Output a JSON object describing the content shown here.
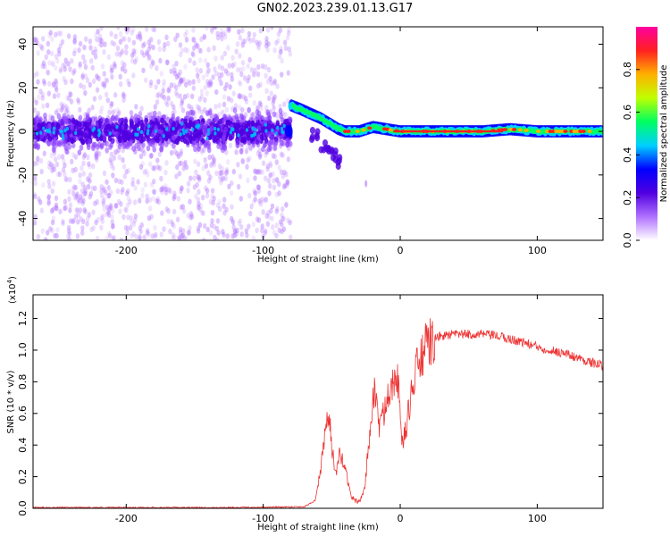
{
  "figure": {
    "title": "GN02.2023.239.01.13.G17"
  },
  "chart_data": [
    {
      "type": "heatmap",
      "xlabel": "Height of straight line (km)",
      "ylabel": "Frequency (Hz)",
      "xlim": [
        -268,
        148
      ],
      "ylim": [
        -50,
        48
      ],
      "x_ticks": [
        -200,
        -100,
        0,
        100
      ],
      "y_ticks": [
        -40,
        -20,
        0,
        20,
        40
      ],
      "colorbar": {
        "label": "Normalized spectral amplitude",
        "range": [
          0.0,
          1.0
        ],
        "ticks": [
          "0.0",
          "0.2",
          "0.4",
          "0.6",
          "0.8"
        ],
        "tick_values": [
          0.0,
          0.2,
          0.4,
          0.6,
          0.8
        ],
        "colormap": [
          "#ffffff",
          "#b070ff",
          "#5000e0",
          "#0000ff",
          "#00d0ff",
          "#00ff60",
          "#c0ff00",
          "#ffb000",
          "#ff2020",
          "#ff00a0"
        ]
      },
      "features": {
        "noise_region_x": [
          -268,
          -80
        ],
        "noise_band_freq": [
          -10,
          10
        ],
        "noise_scatter_freq": [
          -50,
          48
        ],
        "signal_trace": [
          [
            -80,
            12
          ],
          [
            -72,
            10
          ],
          [
            -65,
            8
          ],
          [
            -58,
            6
          ],
          [
            -50,
            3
          ],
          [
            -45,
            1
          ],
          [
            -40,
            0
          ],
          [
            -30,
            0
          ],
          [
            -20,
            2
          ],
          [
            -10,
            1
          ],
          [
            0,
            0
          ],
          [
            20,
            0
          ],
          [
            40,
            0
          ],
          [
            60,
            0
          ],
          [
            80,
            1
          ],
          [
            100,
            0
          ],
          [
            120,
            0
          ],
          [
            148,
            0
          ]
        ],
        "lower_branch": [
          [
            -62,
            -2
          ],
          [
            -55,
            -6
          ],
          [
            -50,
            -10
          ],
          [
            -46,
            -14
          ]
        ]
      },
      "grid": false
    },
    {
      "type": "line",
      "xlabel": "Height of straight line (km)",
      "ylabel": "SNR (10 * v/v)",
      "y_multiplier": "(x10",
      "y_multiplier_exp": "4",
      "xlim": [
        -268,
        148
      ],
      "ylim": [
        0.0,
        1.35
      ],
      "x_ticks": [
        -200,
        -100,
        0,
        100
      ],
      "y_ticks": [
        "0.0",
        "0.2",
        "0.4",
        "0.6",
        "0.8",
        "1.0",
        "1.2"
      ],
      "y_tick_values": [
        0.0,
        0.2,
        0.4,
        0.6,
        0.8,
        1.0,
        1.2
      ],
      "color": "#ee3333",
      "series": [
        {
          "x": [
            -268,
            -200,
            -120,
            -70,
            -62,
            -58,
            -55,
            -52,
            -50,
            -47,
            -44,
            -40,
            -36,
            -33,
            -30,
            -26,
            -22,
            -19,
            -17,
            -15,
            -12,
            -9,
            -6,
            -3,
            -1,
            0,
            2,
            4,
            8,
            12,
            16,
            20,
            25,
            30,
            40,
            50,
            60,
            70,
            80,
            90,
            100,
            110,
            120,
            130,
            140,
            148
          ],
          "y": [
            0.005,
            0.005,
            0.005,
            0.01,
            0.05,
            0.25,
            0.45,
            0.6,
            0.4,
            0.2,
            0.35,
            0.25,
            0.08,
            0.05,
            0.04,
            0.12,
            0.5,
            0.75,
            0.65,
            0.5,
            0.6,
            0.75,
            0.78,
            0.9,
            0.72,
            0.55,
            0.4,
            0.5,
            0.72,
            0.88,
            0.97,
            1.03,
            1.07,
            1.09,
            1.1,
            1.1,
            1.1,
            1.09,
            1.07,
            1.05,
            1.02,
            1.0,
            0.98,
            0.95,
            0.92,
            0.9
          ]
        }
      ],
      "grid": false
    }
  ]
}
